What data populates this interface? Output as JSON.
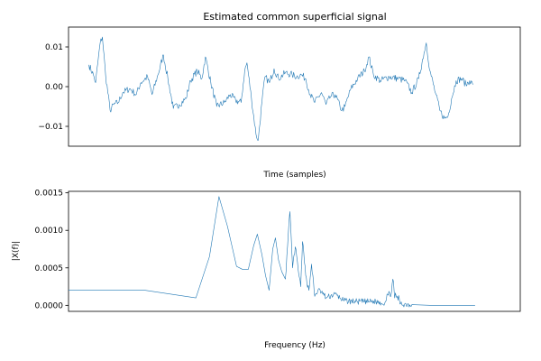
{
  "chart_data": [
    {
      "type": "line",
      "title": "Estimated common superficial signal",
      "xlabel": "Time (samples)",
      "ylabel": "",
      "x_ticks_visible": false,
      "xlim": [
        0,
        1000
      ],
      "ylim": [
        -0.015,
        0.015
      ],
      "yticks": [
        0.01,
        0.0,
        -0.01
      ],
      "ytick_labels": [
        "0.01",
        "0.00",
        "−0.01"
      ],
      "grid": false,
      "color": "#1f77b4",
      "waypoints": [
        [
          45,
          0.0055
        ],
        [
          55,
          0.003
        ],
        [
          60,
          0.001
        ],
        [
          70,
          0.011
        ],
        [
          75,
          0.0125
        ],
        [
          82,
          0.003
        ],
        [
          92,
          -0.006
        ],
        [
          100,
          -0.0045
        ],
        [
          110,
          -0.004
        ],
        [
          120,
          -0.0015
        ],
        [
          135,
          -0.0005
        ],
        [
          150,
          -0.002
        ],
        [
          160,
          0.001
        ],
        [
          175,
          0.0025
        ],
        [
          185,
          -0.002
        ],
        [
          198,
          0.003
        ],
        [
          210,
          0.008
        ],
        [
          220,
          0.002
        ],
        [
          232,
          -0.0055
        ],
        [
          245,
          -0.0045
        ],
        [
          260,
          -0.003
        ],
        [
          270,
          0.0015
        ],
        [
          285,
          0.004
        ],
        [
          295,
          0.002
        ],
        [
          303,
          0.0075
        ],
        [
          315,
          0.001
        ],
        [
          328,
          -0.005
        ],
        [
          345,
          -0.004
        ],
        [
          358,
          -0.002
        ],
        [
          370,
          -0.0035
        ],
        [
          382,
          -0.004
        ],
        [
          390,
          0.004
        ],
        [
          395,
          0.006
        ],
        [
          405,
          -0.003
        ],
        [
          415,
          -0.012
        ],
        [
          420,
          -0.0135
        ],
        [
          428,
          -0.004
        ],
        [
          435,
          0.0025
        ],
        [
          445,
          0.001
        ],
        [
          455,
          0.0045
        ],
        [
          465,
          0.002
        ],
        [
          480,
          0.0035
        ],
        [
          495,
          0.003
        ],
        [
          505,
          0.0025
        ],
        [
          515,
          0.003
        ],
        [
          525,
          0.002
        ],
        [
          535,
          -0.002
        ],
        [
          545,
          -0.004
        ],
        [
          560,
          -0.0015
        ],
        [
          570,
          -0.0045
        ],
        [
          580,
          -0.0025
        ],
        [
          590,
          -0.002
        ],
        [
          605,
          -0.006
        ],
        [
          612,
          -0.005
        ],
        [
          625,
          -0.0005
        ],
        [
          640,
          0.002
        ],
        [
          655,
          0.004
        ],
        [
          665,
          0.0075
        ],
        [
          675,
          0.003
        ],
        [
          690,
          0.0015
        ],
        [
          710,
          0.0025
        ],
        [
          730,
          0.002
        ],
        [
          745,
          0.0015
        ],
        [
          760,
          -0.0015
        ],
        [
          775,
          0.002
        ],
        [
          787,
          0.0085
        ],
        [
          792,
          0.011
        ],
        [
          800,
          0.004
        ],
        [
          812,
          -0.0015
        ],
        [
          822,
          -0.006
        ],
        [
          832,
          -0.008
        ],
        [
          840,
          -0.0075
        ],
        [
          848,
          -0.003
        ],
        [
          858,
          0.0015
        ],
        [
          870,
          0.002
        ],
        [
          880,
          0.0005
        ],
        [
          888,
          0.0015
        ],
        [
          895,
          0.0005
        ]
      ]
    },
    {
      "type": "line",
      "title": "",
      "xlabel": "Frequency (Hz)",
      "ylabel": "|X(f)|",
      "x_ticks_visible": false,
      "xlim": [
        0,
        1000
      ],
      "ylim": [
        -8e-05,
        0.00152
      ],
      "yticks": [
        0.0015,
        0.001,
        0.0005,
        0.0
      ],
      "ytick_labels": [
        "0.0015",
        "0.0010",
        "0.0005",
        "0.0000"
      ],
      "grid": false,
      "color": "#1f77b4",
      "waypoints": [
        [
          0,
          0.0002
        ],
        [
          170,
          0.0002
        ],
        [
          282,
          0.0001
        ],
        [
          312,
          0.00065
        ],
        [
          333,
          0.00145
        ],
        [
          352,
          0.00105
        ],
        [
          372,
          0.00052
        ],
        [
          385,
          0.00048
        ],
        [
          398,
          0.00048
        ],
        [
          410,
          0.0008
        ],
        [
          418,
          0.00095
        ],
        [
          428,
          0.00068
        ],
        [
          436,
          0.0004
        ],
        [
          444,
          0.0002
        ],
        [
          452,
          0.00075
        ],
        [
          458,
          0.0009
        ],
        [
          465,
          0.0006
        ],
        [
          472,
          0.00045
        ],
        [
          480,
          0.00035
        ],
        [
          485,
          0.0008
        ],
        [
          490,
          0.00125
        ],
        [
          496,
          0.0005
        ],
        [
          502,
          0.00078
        ],
        [
          510,
          0.0004
        ],
        [
          514,
          0.00025
        ],
        [
          518,
          0.00085
        ],
        [
          525,
          0.0004
        ],
        [
          532,
          0.0002
        ],
        [
          538,
          0.00055
        ],
        [
          545,
          0.00012
        ],
        [
          552,
          0.0002
        ],
        [
          560,
          0.00018
        ],
        [
          570,
          0.0001
        ],
        [
          590,
          0.00015
        ],
        [
          610,
          6e-05
        ],
        [
          640,
          5e-05
        ],
        [
          680,
          5e-05
        ],
        [
          700,
          3e-05
        ],
        [
          705,
          0.00015
        ],
        [
          712,
          0.00012
        ],
        [
          718,
          0.00035
        ],
        [
          722,
          0.0001
        ],
        [
          728,
          0.00012
        ],
        [
          735,
          2e-05
        ],
        [
          760,
          1e-05
        ],
        [
          800,
          0.0
        ],
        [
          900,
          0.0
        ]
      ]
    }
  ]
}
